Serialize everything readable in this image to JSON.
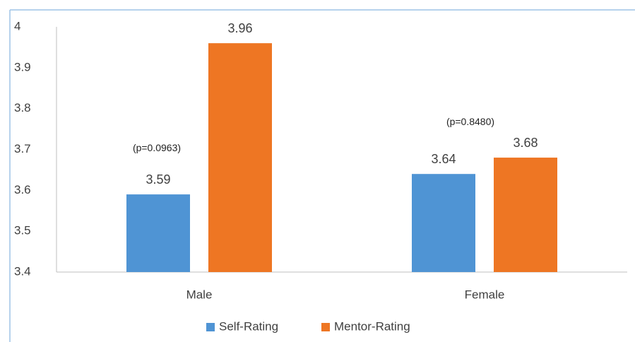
{
  "chart_data": {
    "type": "bar",
    "categories": [
      "Male",
      "Female"
    ],
    "series": [
      {
        "name": "Self-Rating",
        "color": "#4f94d4",
        "values": [
          3.59,
          3.64
        ]
      },
      {
        "name": "Mentor-Rating",
        "color": "#ee7623",
        "values": [
          3.96,
          3.68
        ]
      }
    ],
    "annotations": [
      "(p=0.0963)",
      "(p=0.8480)"
    ],
    "ylim": [
      3.4,
      4
    ],
    "yticks": [
      3.4,
      3.5,
      3.6,
      3.7,
      3.8,
      3.9,
      4
    ],
    "grid": false,
    "legend": "bottom"
  }
}
